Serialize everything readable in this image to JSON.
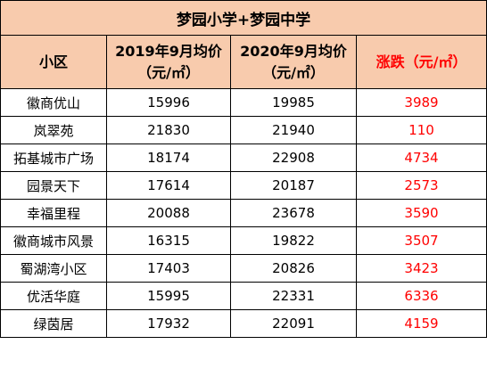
{
  "table": {
    "title": "梦园小学+梦园中学",
    "headers": {
      "community": "小区",
      "price_2019_line1": "2019年9月均价",
      "price_2019_line2": "（元/㎡）",
      "price_2020_line1": "2020年9月均价",
      "price_2020_line2": "（元/㎡）",
      "change": "涨跌（元/㎡）"
    },
    "rows": [
      {
        "community": "徽商优山",
        "price_2019": "15996",
        "price_2020": "19985",
        "change": "3989"
      },
      {
        "community": "岚翠苑",
        "price_2019": "21830",
        "price_2020": "21940",
        "change": "110"
      },
      {
        "community": "拓基城市广场",
        "price_2019": "18174",
        "price_2020": "22908",
        "change": "4734"
      },
      {
        "community": "园景天下",
        "price_2019": "17614",
        "price_2020": "20187",
        "change": "2573"
      },
      {
        "community": "幸福里程",
        "price_2019": "20088",
        "price_2020": "23678",
        "change": "3590"
      },
      {
        "community": "徽商城市风景",
        "price_2019": "16315",
        "price_2020": "19822",
        "change": "3507"
      },
      {
        "community": "蜀湖湾小区",
        "price_2019": "17403",
        "price_2020": "20826",
        "change": "3423"
      },
      {
        "community": "优活华庭",
        "price_2019": "15995",
        "price_2020": "22331",
        "change": "6336"
      },
      {
        "community": "绿茵居",
        "price_2019": "17932",
        "price_2020": "22091",
        "change": "4159"
      }
    ],
    "colors": {
      "header_bg": "#f8cbad",
      "change_text": "#ff0000",
      "border": "#000000"
    }
  }
}
